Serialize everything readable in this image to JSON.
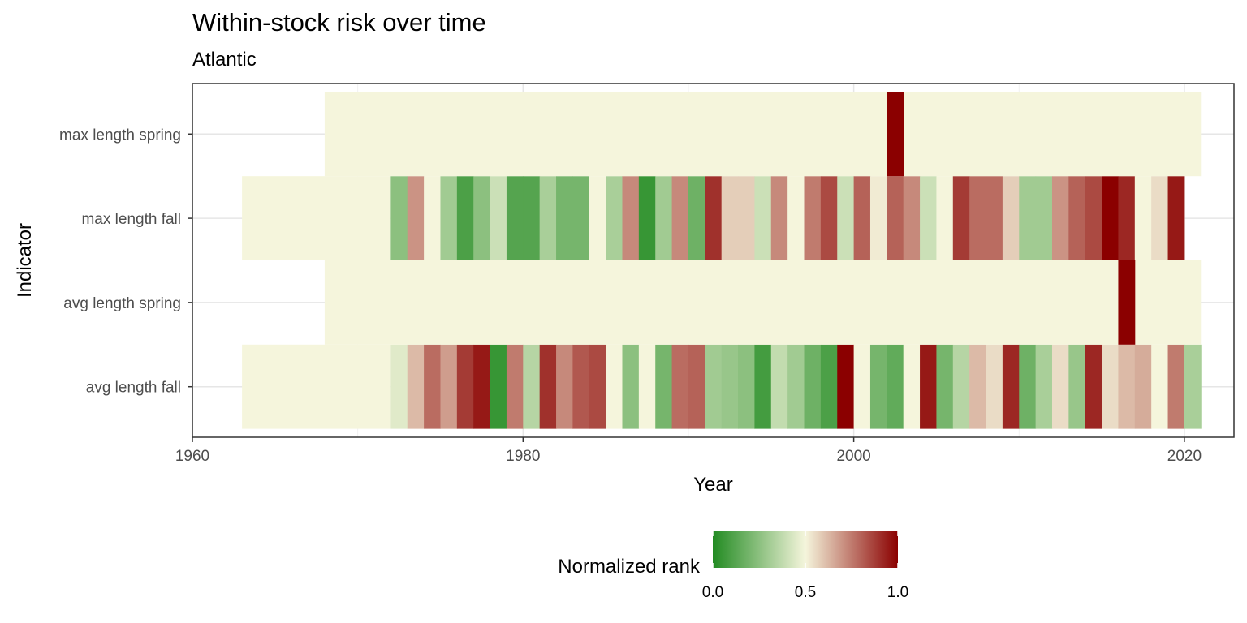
{
  "chart_data": {
    "type": "heatmap",
    "title": "Within-stock risk over time",
    "subtitle": "Atlantic",
    "xlabel": "Year",
    "ylabel": "Indicator",
    "xlim": [
      1960,
      2023
    ],
    "x_ticks": [
      1960,
      1980,
      2000,
      2020
    ],
    "grid": true,
    "legend": {
      "title": "Normalized rank",
      "position": "bottom",
      "ticks": [
        0.0,
        0.5,
        1.0
      ],
      "tick_labels": [
        "0.0",
        "0.5",
        "1.0"
      ],
      "colors": [
        "#228B22",
        "#F5F5DC",
        "#8B0000"
      ]
    },
    "rows": [
      {
        "label": "avg length fall",
        "segments": [
          {
            "start": 1963,
            "end": 1972,
            "value": 0.5
          }
        ],
        "start_year": 1972,
        "values": [
          0.45,
          0.62,
          0.78,
          0.68,
          0.88,
          0.95,
          0.05,
          0.75,
          0.35,
          0.9,
          0.72,
          0.82,
          0.85,
          0.5,
          0.25,
          0.5,
          0.2,
          0.78,
          0.8,
          0.3,
          0.28,
          0.25,
          0.08,
          0.38,
          0.3,
          0.18,
          0.1,
          1.0,
          0.5,
          0.2,
          0.15,
          0.5,
          0.95,
          0.2,
          0.35,
          0.62,
          0.55,
          0.92,
          0.18,
          0.32,
          0.55,
          0.28,
          0.92,
          0.55,
          0.62,
          0.65,
          0.5,
          0.75,
          0.32
        ]
      },
      {
        "label": "avg length spring",
        "segments": [
          {
            "start": 1968,
            "end": 2016,
            "value": 0.5
          },
          {
            "start": 2017,
            "end": 2021,
            "value": 0.5
          }
        ],
        "start_year": 2016,
        "values": [
          1.0
        ]
      },
      {
        "label": "max length fall",
        "segments": [
          {
            "start": 1963,
            "end": 1972,
            "value": 0.5
          }
        ],
        "start_year": 1972,
        "values": [
          0.25,
          0.7,
          0.5,
          0.3,
          0.1,
          0.25,
          0.4,
          0.12,
          0.12,
          0.32,
          0.2,
          0.2,
          0.5,
          0.32,
          0.72,
          0.05,
          0.3,
          0.72,
          0.18,
          0.9,
          0.58,
          0.58,
          0.4,
          0.72,
          0.5,
          0.75,
          0.85,
          0.4,
          0.8,
          0.52,
          0.8,
          0.72,
          0.4,
          0.5,
          0.88,
          0.78,
          0.78,
          0.58,
          0.3,
          0.3,
          0.7,
          0.8,
          0.85,
          1.0,
          0.92,
          0.5,
          0.55,
          0.95
        ]
      },
      {
        "label": "max length spring",
        "segments": [
          {
            "start": 1968,
            "end": 2002,
            "value": 0.5
          },
          {
            "start": 2003,
            "end": 2021,
            "value": 0.5
          }
        ],
        "start_year": 2002,
        "values": [
          1.0
        ]
      }
    ]
  }
}
